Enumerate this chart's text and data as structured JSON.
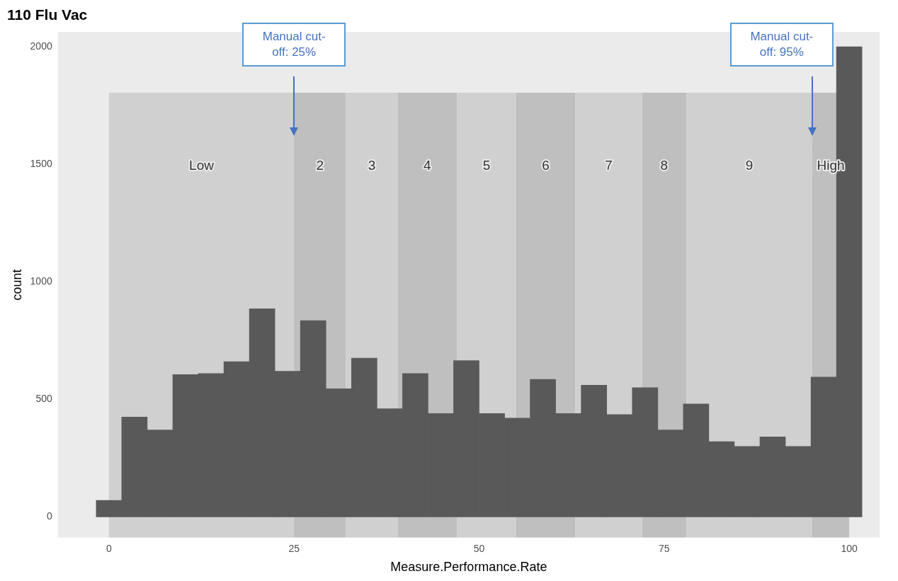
{
  "chart_data": {
    "type": "histogram",
    "title": "110 Flu Vac",
    "xlabel": "Measure.Performance.Rate",
    "ylabel": "count",
    "bins": [
      -1.72,
      1.72,
      5.17,
      8.62,
      12.07,
      15.52,
      18.97,
      22.41,
      25.86,
      29.31,
      32.76,
      36.21,
      39.66,
      43.1,
      46.55,
      50,
      53.45,
      56.9,
      60.34,
      63.79,
      67.24,
      70.69,
      74.14,
      77.59,
      81.03,
      84.48,
      87.93,
      91.38,
      94.83,
      98.28,
      101.72
    ],
    "values": [
      70,
      425,
      370,
      605,
      610,
      660,
      885,
      620,
      835,
      545,
      675,
      460,
      610,
      440,
      665,
      440,
      420,
      585,
      440,
      560,
      435,
      550,
      370,
      480,
      320,
      300,
      340,
      300,
      595,
      2000
    ],
    "color": "#595959",
    "xlim": [
      -6.9,
      104.1
    ],
    "xticks": [
      0,
      25,
      50,
      75,
      100
    ],
    "ylim": [
      -88,
      2063
    ],
    "yticks": [
      0,
      500,
      1000,
      1500,
      2000
    ],
    "grid": false,
    "bands": [
      {
        "axis": "x",
        "from": 0,
        "to": 25,
        "label": "Low",
        "color": "#d0d0d0"
      },
      {
        "axis": "x",
        "from": 25,
        "to": 32,
        "label": "2",
        "color": "#bfbfbf"
      },
      {
        "axis": "x",
        "from": 32,
        "to": 39,
        "label": "3",
        "color": "#d0d0d0"
      },
      {
        "axis": "x",
        "from": 39,
        "to": 47,
        "label": "4",
        "color": "#bfbfbf"
      },
      {
        "axis": "x",
        "from": 47,
        "to": 55,
        "label": "5",
        "color": "#d0d0d0"
      },
      {
        "axis": "x",
        "from": 55,
        "to": 63,
        "label": "6",
        "color": "#bfbfbf"
      },
      {
        "axis": "x",
        "from": 63,
        "to": 72,
        "label": "7",
        "color": "#d0d0d0"
      },
      {
        "axis": "x",
        "from": 72,
        "to": 78,
        "label": "8",
        "color": "#bfbfbf"
      },
      {
        "axis": "x",
        "from": 78,
        "to": 95,
        "label": "9",
        "color": "#d0d0d0"
      },
      {
        "axis": "x",
        "from": 95,
        "to": 100,
        "label": "High",
        "color": "#bfbfbf"
      }
    ],
    "ref_lines": [
      {
        "axis": "x",
        "value": 25,
        "label": "Manual cut-off: 25%",
        "color": "#4472c4"
      },
      {
        "axis": "x",
        "value": 95,
        "label": "Manual cut-off: 95%",
        "color": "#4472c4"
      }
    ]
  }
}
